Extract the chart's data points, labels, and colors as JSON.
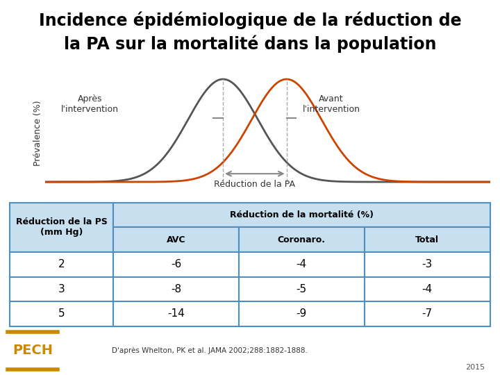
{
  "title": "Incidence épidémiologique de la réduction de\nla PA sur la mortalité dans la population",
  "title_fontsize": 17,
  "title_fontweight": "bold",
  "curve_after_mean": 0.0,
  "curve_before_mean": 1.0,
  "curve_std": 0.55,
  "curve_after_color": "#555555",
  "curve_before_color": "#CC4400",
  "ylabel": "Prévalence (%)",
  "arrow_color": "#888888",
  "reduction_label": "Réduction de la PA",
  "label_after": "Après\nl'intervention",
  "label_before": "Avant\nl'intervention",
  "table_header1": "Réduction de la PS\n(mm Hg)",
  "table_header2": "Réduction de la mortalité (%)",
  "col_headers": [
    "AVC",
    "Coronaro.",
    "Total"
  ],
  "rows": [
    [
      2,
      -6,
      -4,
      -3
    ],
    [
      3,
      -8,
      -5,
      -4
    ],
    [
      5,
      -14,
      -9,
      -7
    ]
  ],
  "table_border_color": "#4A90C4",
  "table_header_bg": "#C8DFF0",
  "table_row_bg": "#FFFFFF",
  "footer_text": "D'après Whelton, PK et al. JAMA 2002;288:1882-1888.",
  "year_text": "2015",
  "bg_color": "#FFFFFF",
  "pech_text_color": "#CC8800",
  "pech_border_color": "#CC8800",
  "pech_bar_color": "#CC8800"
}
